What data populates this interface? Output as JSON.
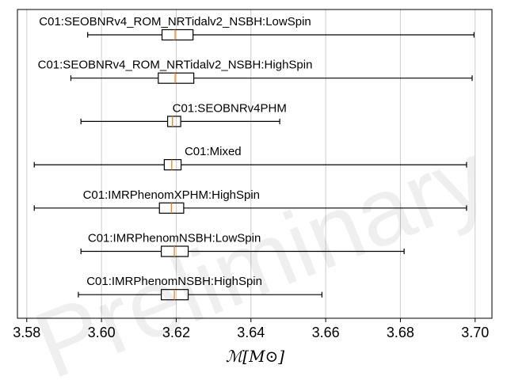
{
  "chart_data": {
    "type": "boxplot",
    "orientation": "horizontal",
    "xlabel": "ℳ[M⊙]",
    "xlim": [
      3.5775,
      3.7045
    ],
    "xticks": [
      3.58,
      3.6,
      3.62,
      3.64,
      3.66,
      3.68,
      3.7
    ],
    "xtick_labels": [
      "3.58",
      "3.60",
      "3.62",
      "3.64",
      "3.66",
      "3.68",
      "3.70"
    ],
    "grid": "vertical",
    "watermark": "Preliminary",
    "series": [
      {
        "name": "C01:SEOBNRv4_ROM_NRTidalv2_NSBH:LowSpin",
        "whisker_low": 3.5963,
        "q1": 3.6162,
        "median": 3.6197,
        "q3": 3.6245,
        "whisker_high": 3.6997
      },
      {
        "name": "C01:SEOBNRv4_ROM_NRTidalv2_NSBH:HighSpin",
        "whisker_low": 3.5918,
        "q1": 3.6152,
        "median": 3.6197,
        "q3": 3.6247,
        "whisker_high": 3.6992
      },
      {
        "name": "C01:SEOBNRv4PHM",
        "whisker_low": 3.5945,
        "q1": 3.6177,
        "median": 3.619,
        "q3": 3.6212,
        "whisker_high": 3.6477
      },
      {
        "name": "C01:Mixed",
        "whisker_low": 3.582,
        "q1": 3.6168,
        "median": 3.6188,
        "q3": 3.6213,
        "whisker_high": 3.6977
      },
      {
        "name": "C01:IMRPhenomXPHM:HighSpin",
        "whisker_low": 3.582,
        "q1": 3.6155,
        "median": 3.6187,
        "q3": 3.622,
        "whisker_high": 3.6977
      },
      {
        "name": "C01:IMRPhenomNSBH:LowSpin",
        "whisker_low": 3.5945,
        "q1": 3.616,
        "median": 3.6195,
        "q3": 3.6232,
        "whisker_high": 3.681
      },
      {
        "name": "C01:IMRPhenomNSBH:HighSpin",
        "whisker_low": 3.5938,
        "q1": 3.616,
        "median": 3.6195,
        "q3": 3.6232,
        "whisker_high": 3.659
      }
    ],
    "colors": {
      "box": "#000000",
      "median": "#ff7f0e",
      "grid": "#cccccc",
      "axes": "#000000"
    }
  }
}
